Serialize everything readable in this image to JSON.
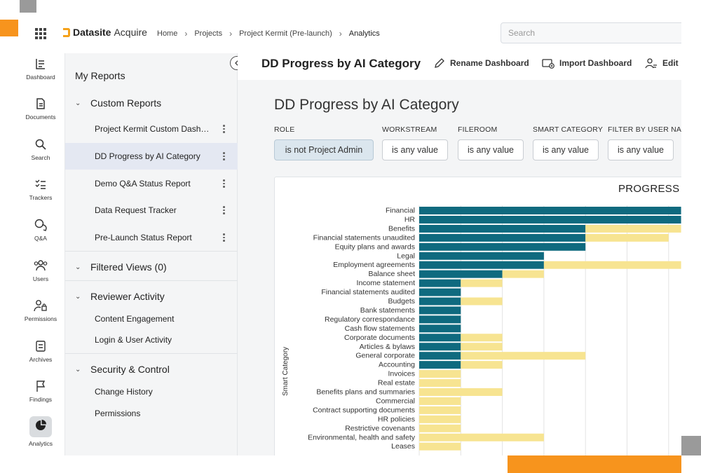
{
  "colors": {
    "accent": "#f5a21b",
    "teal": "#0f6a7f",
    "yellow": "#f7e491",
    "gray": "#8c8c8c"
  },
  "topbar": {
    "brand": "Datasite",
    "brand_suffix": "Acquire",
    "breadcrumbs": [
      "Home",
      "Projects",
      "Project Kermit (Pre-launch)",
      "Analytics"
    ],
    "search_placeholder": "Search"
  },
  "rail": [
    {
      "label": "Dashboard",
      "icon": "dashboard-icon"
    },
    {
      "label": "Documents",
      "icon": "document-icon"
    },
    {
      "label": "Search",
      "icon": "search-icon"
    },
    {
      "label": "Trackers",
      "icon": "checklist-icon"
    },
    {
      "label": "Q&A",
      "icon": "chat-icon"
    },
    {
      "label": "Users",
      "icon": "users-icon"
    },
    {
      "label": "Permissions",
      "icon": "user-lock-icon"
    },
    {
      "label": "Archives",
      "icon": "archive-icon"
    },
    {
      "label": "Findings",
      "icon": "flag-icon"
    },
    {
      "label": "Analytics",
      "icon": "pie-chart-icon"
    }
  ],
  "reports": {
    "title": "My Reports",
    "custom_reports": {
      "label": "Custom Reports",
      "items": [
        "Project Kermit Custom Dash…",
        "DD Progress by AI Category",
        "Demo Q&A Status Report",
        "Data Request Tracker",
        "Pre-Launch Status Report"
      ]
    },
    "filtered_views": {
      "label": "Filtered Views (0)"
    },
    "reviewer_activity": {
      "label": "Reviewer Activity",
      "items": [
        "Content Engagement",
        "Login & User Activity"
      ]
    },
    "security_control": {
      "label": "Security & Control",
      "items": [
        "Change History",
        "Permissions"
      ]
    }
  },
  "main": {
    "title": "DD Progress by AI Category",
    "actions": [
      "Rename Dashboard",
      "Import Dashboard",
      "Edit"
    ],
    "dashboard_title": "DD Progress by AI Category",
    "filters": [
      {
        "label": "ROLE",
        "value": "is not Project Admin"
      },
      {
        "label": "WORKSTREAM",
        "value": "is any value"
      },
      {
        "label": "FILEROOM",
        "value": "is any value"
      },
      {
        "label": "SMART CATEGORY",
        "value": "is any value"
      },
      {
        "label": "FILTER BY USER NAME",
        "value": "is any value"
      }
    ]
  },
  "chart_data": {
    "type": "bar",
    "orientation": "horizontal",
    "stacked": true,
    "title": "PROGRESS B",
    "ylabel": "Smart Category",
    "xlim": [
      0,
      6.3
    ],
    "categories": [
      "Financial",
      "HR",
      "Benefits",
      "Financial statements unaudited",
      "Equity plans and awards",
      "Legal",
      "Employment agreements",
      "Balance sheet",
      "Income statement",
      "Financial statements audited",
      "Budgets",
      "Bank statements",
      "Regulatory correspondance",
      "Cash flow statements",
      "Corporate documents",
      "Articles & bylaws",
      "General corporate",
      "Accounting",
      "Invoices",
      "Real estate",
      "Benefits plans and summaries",
      "Commercial",
      "Contract supporting documents",
      "HR policies",
      "Restrictive covenants",
      "Environmental, health and safety",
      "Leases"
    ],
    "series": [
      {
        "color": "#0f6a7f",
        "values": [
          6.3,
          6.3,
          4,
          4,
          4,
          3,
          3,
          2,
          1,
          1,
          1,
          1,
          1,
          1,
          1,
          1,
          1,
          1,
          0,
          0,
          0,
          0,
          0,
          0,
          0,
          0,
          0
        ]
      },
      {
        "color": "#f7e491",
        "values": [
          0,
          0,
          2.3,
          2,
          0,
          0,
          3.3,
          1,
          1,
          0,
          1,
          0,
          0,
          0,
          1,
          1,
          3,
          1,
          1,
          1,
          2,
          1,
          1,
          1,
          1,
          3,
          1
        ]
      }
    ]
  }
}
